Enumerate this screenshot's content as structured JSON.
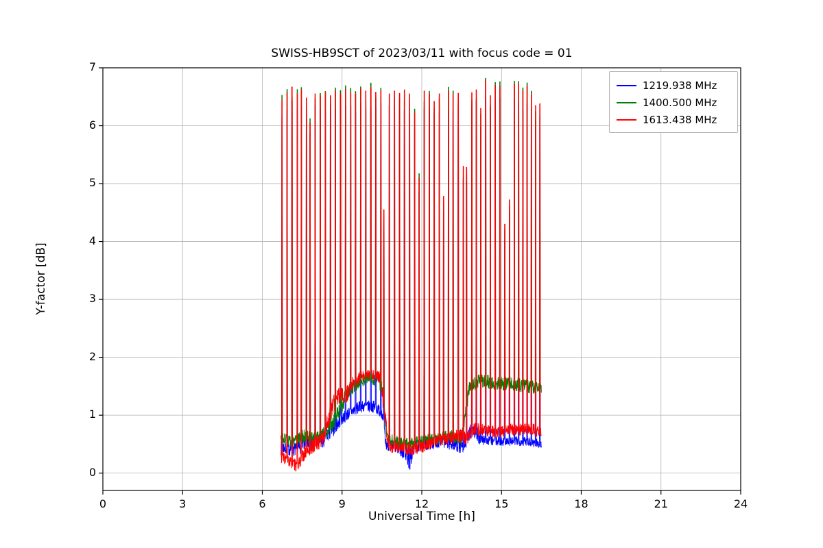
{
  "chart_data": {
    "type": "line",
    "title": "SWISS-HB9SCT of 2023/03/11 with focus code = 01",
    "xlabel": "Universal Time [h]",
    "ylabel": "Y-factor [dB]",
    "xlim": [
      0,
      24
    ],
    "ylim": [
      -0.3,
      7.0
    ],
    "xticks": [
      0,
      3,
      6,
      9,
      12,
      15,
      18,
      21,
      24
    ],
    "yticks": [
      0,
      1,
      2,
      3,
      4,
      5,
      6,
      7
    ],
    "grid": true,
    "grid_color": "#b0b0b0",
    "legend_position": "upper right",
    "data_time_range_h": [
      6.7,
      16.5
    ],
    "series": [
      {
        "name": "1219.938 MHz",
        "color": "#0000ff",
        "spike_peak_offset": -0.25,
        "baseline_keypoints": [
          [
            6.7,
            0.45,
            0.12
          ],
          [
            7.3,
            0.4,
            0.12
          ],
          [
            7.6,
            0.55,
            0.15
          ],
          [
            8.0,
            0.5,
            0.12
          ],
          [
            8.3,
            0.55,
            0.12
          ],
          [
            8.6,
            0.75,
            0.15
          ],
          [
            9.0,
            0.95,
            0.12
          ],
          [
            9.3,
            1.05,
            0.1
          ],
          [
            9.7,
            1.15,
            0.1
          ],
          [
            10.2,
            1.15,
            0.1
          ],
          [
            10.5,
            1.05,
            0.1
          ],
          [
            10.65,
            0.5,
            0.1
          ],
          [
            11.0,
            0.45,
            0.1
          ],
          [
            11.4,
            0.35,
            0.15
          ],
          [
            11.55,
            0.22,
            0.2
          ],
          [
            11.7,
            0.45,
            0.12
          ],
          [
            12.2,
            0.5,
            0.1
          ],
          [
            12.8,
            0.55,
            0.1
          ],
          [
            13.3,
            0.5,
            0.15
          ],
          [
            13.6,
            0.45,
            0.12
          ],
          [
            13.9,
            0.8,
            0.15
          ],
          [
            14.1,
            0.6,
            0.1
          ],
          [
            14.5,
            0.55,
            0.08
          ],
          [
            15.0,
            0.55,
            0.08
          ],
          [
            15.5,
            0.55,
            0.08
          ],
          [
            16.0,
            0.55,
            0.08
          ],
          [
            16.5,
            0.5,
            0.08
          ]
        ]
      },
      {
        "name": "1400.500 MHz",
        "color": "#008000",
        "spike_peak_offset": 0.05,
        "baseline_keypoints": [
          [
            6.7,
            0.6,
            0.1
          ],
          [
            7.2,
            0.55,
            0.1
          ],
          [
            7.6,
            0.65,
            0.12
          ],
          [
            8.0,
            0.6,
            0.1
          ],
          [
            8.4,
            0.7,
            0.12
          ],
          [
            8.7,
            0.9,
            0.15
          ],
          [
            9.0,
            1.2,
            0.15
          ],
          [
            9.3,
            1.45,
            0.12
          ],
          [
            9.6,
            1.55,
            0.1
          ],
          [
            10.0,
            1.65,
            0.1
          ],
          [
            10.4,
            1.6,
            0.12
          ],
          [
            10.55,
            1.3,
            0.15
          ],
          [
            10.7,
            0.6,
            0.1
          ],
          [
            11.0,
            0.55,
            0.1
          ],
          [
            11.5,
            0.5,
            0.1
          ],
          [
            12.0,
            0.55,
            0.1
          ],
          [
            12.5,
            0.6,
            0.1
          ],
          [
            13.0,
            0.65,
            0.1
          ],
          [
            13.5,
            0.6,
            0.12
          ],
          [
            13.8,
            1.5,
            0.12
          ],
          [
            14.2,
            1.6,
            0.12
          ],
          [
            14.8,
            1.55,
            0.12
          ],
          [
            15.4,
            1.55,
            0.12
          ],
          [
            16.0,
            1.5,
            0.12
          ],
          [
            16.5,
            1.45,
            0.12
          ]
        ]
      },
      {
        "name": "1613.438 MHz",
        "color": "#ff0000",
        "spike_peak_offset": 0,
        "baseline_keypoints": [
          [
            6.7,
            0.3,
            0.12
          ],
          [
            7.0,
            0.2,
            0.1
          ],
          [
            7.3,
            0.12,
            0.1
          ],
          [
            7.6,
            0.35,
            0.12
          ],
          [
            8.0,
            0.5,
            0.12
          ],
          [
            8.3,
            0.6,
            0.15
          ],
          [
            8.6,
            1.1,
            0.2
          ],
          [
            8.9,
            1.35,
            0.15
          ],
          [
            9.1,
            1.3,
            0.15
          ],
          [
            9.4,
            1.55,
            0.12
          ],
          [
            9.7,
            1.65,
            0.1
          ],
          [
            10.1,
            1.7,
            0.1
          ],
          [
            10.45,
            1.65,
            0.1
          ],
          [
            10.6,
            1.0,
            0.2
          ],
          [
            10.75,
            0.45,
            0.1
          ],
          [
            11.2,
            0.45,
            0.1
          ],
          [
            11.6,
            0.4,
            0.1
          ],
          [
            12.0,
            0.45,
            0.1
          ],
          [
            12.5,
            0.55,
            0.1
          ],
          [
            13.0,
            0.6,
            0.1
          ],
          [
            13.4,
            0.65,
            0.12
          ],
          [
            13.7,
            0.6,
            0.12
          ],
          [
            13.9,
            0.75,
            0.12
          ],
          [
            14.3,
            0.75,
            0.1
          ],
          [
            14.8,
            0.7,
            0.1
          ],
          [
            15.3,
            0.75,
            0.1
          ],
          [
            15.8,
            0.75,
            0.1
          ],
          [
            16.2,
            0.75,
            0.1
          ],
          [
            16.5,
            0.7,
            0.1
          ]
        ]
      }
    ],
    "calibration_spikes": [
      [
        6.74,
        6.45
      ],
      [
        6.93,
        6.57
      ],
      [
        7.12,
        6.67
      ],
      [
        7.32,
        6.55
      ],
      [
        7.47,
        6.62
      ],
      [
        7.66,
        6.48
      ],
      [
        7.8,
        6.05
      ],
      [
        7.99,
        6.55
      ],
      [
        8.18,
        6.52
      ],
      [
        8.37,
        6.56
      ],
      [
        8.56,
        6.52
      ],
      [
        8.75,
        6.6
      ],
      [
        8.94,
        6.55
      ],
      [
        9.13,
        6.63
      ],
      [
        9.32,
        6.58
      ],
      [
        9.51,
        6.55
      ],
      [
        9.7,
        6.64
      ],
      [
        9.89,
        6.6
      ],
      [
        10.08,
        6.66
      ],
      [
        10.27,
        6.58
      ],
      [
        10.46,
        6.6
      ],
      [
        10.57,
        4.55
      ],
      [
        10.78,
        6.55
      ],
      [
        10.97,
        6.6
      ],
      [
        11.16,
        6.56
      ],
      [
        11.35,
        6.62
      ],
      [
        11.54,
        6.55
      ],
      [
        11.73,
        6.22
      ],
      [
        11.9,
        5.1
      ],
      [
        12.09,
        6.6
      ],
      [
        12.28,
        6.55
      ],
      [
        12.47,
        6.42
      ],
      [
        12.66,
        6.55
      ],
      [
        12.82,
        4.78
      ],
      [
        13.0,
        6.6
      ],
      [
        13.18,
        6.55
      ],
      [
        13.37,
        6.56
      ],
      [
        13.56,
        5.3
      ],
      [
        13.68,
        5.28
      ],
      [
        13.88,
        6.57
      ],
      [
        14.05,
        6.62
      ],
      [
        14.22,
        6.3
      ],
      [
        14.4,
        6.78
      ],
      [
        14.58,
        6.52
      ],
      [
        14.76,
        6.7
      ],
      [
        14.94,
        6.68
      ],
      [
        15.12,
        4.3
      ],
      [
        15.3,
        4.72
      ],
      [
        15.48,
        6.72
      ],
      [
        15.64,
        6.72
      ],
      [
        15.8,
        6.6
      ],
      [
        15.96,
        6.68
      ],
      [
        16.12,
        6.55
      ],
      [
        16.28,
        6.35
      ],
      [
        16.44,
        6.38
      ]
    ]
  }
}
